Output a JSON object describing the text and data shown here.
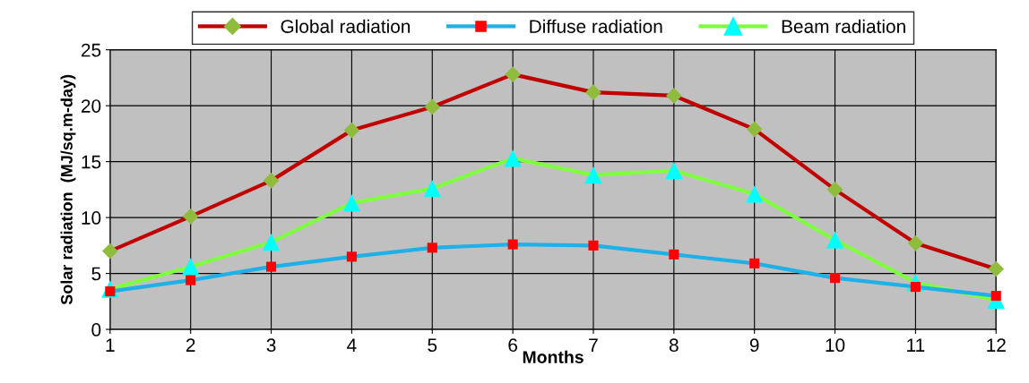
{
  "chart_data": {
    "type": "line",
    "xlabel": "Months",
    "ylabel": "Solar radiation  (MJ/sq.m-day)",
    "x": [
      1,
      2,
      3,
      4,
      5,
      6,
      7,
      8,
      9,
      10,
      11,
      12
    ],
    "series": [
      {
        "name": "Global radiation",
        "color": "#c00000",
        "colors": [
          "#8fbc3c",
          "#8fbc3c",
          "#8fbc3c",
          "#8fbc3c",
          "#8fbc3c",
          "#8fbc3c",
          "#8fbc3c",
          "#8fbc3c",
          "#8fbc3c",
          "#8fbc3c",
          "#8fbc3c",
          "#8fbc3c"
        ],
        "marker": "diamond",
        "values": [
          7.0,
          10.1,
          13.3,
          17.8,
          19.9,
          22.8,
          21.2,
          20.9,
          17.9,
          12.5,
          7.7,
          5.4
        ]
      },
      {
        "name": "Diffuse radiation",
        "color": "#1fb0e8",
        "colors": [
          "#ff0000",
          "#ff0000",
          "#ff0000",
          "#ff0000",
          "#ff0000",
          "#ff0000",
          "#ff0000",
          "#ff0000",
          "#ff0000",
          "#ff0000",
          "#ff0000",
          "#ff0000"
        ],
        "marker": "square",
        "values": [
          3.4,
          4.4,
          5.6,
          6.5,
          7.3,
          7.6,
          7.5,
          6.7,
          5.9,
          4.6,
          3.8,
          3.0
        ]
      },
      {
        "name": "Beam radiation",
        "color": "#7fff3f",
        "colors": [
          "#00ffff",
          "#00ffff",
          "#00ffff",
          "#00ffff",
          "#00ffff",
          "#00ffff",
          "#00ffff",
          "#00ffff",
          "#00ffff",
          "#00ffff",
          "#00ffff",
          "#00ffff"
        ],
        "marker": "triangle",
        "values": [
          3.6,
          5.6,
          7.8,
          11.3,
          12.6,
          15.3,
          13.8,
          14.2,
          12.1,
          8.0,
          4.2,
          2.6
        ]
      }
    ],
    "xlim": [
      1,
      12
    ],
    "xticks": [
      1,
      2,
      3,
      4,
      5,
      6,
      7,
      8,
      9,
      10,
      11,
      12
    ],
    "ylim": [
      0,
      25
    ],
    "yticks": [
      0,
      5,
      10,
      15,
      20,
      25
    ],
    "grid": true,
    "legend": "top"
  }
}
